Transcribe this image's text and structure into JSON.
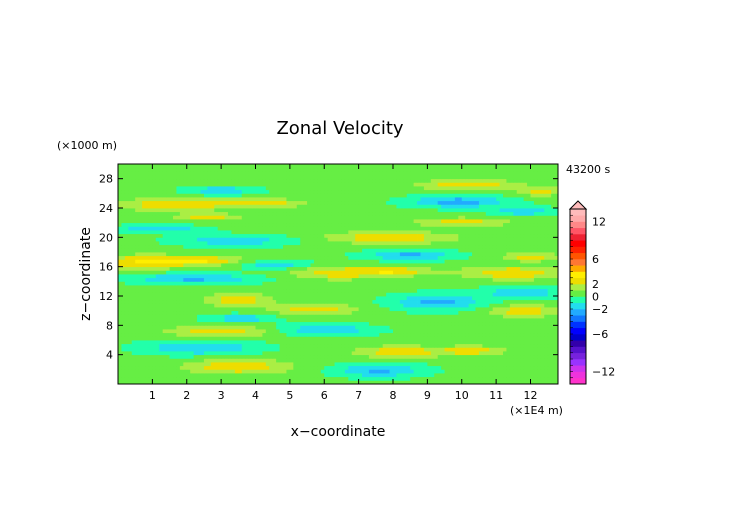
{
  "chart_data": {
    "type": "heatmap",
    "title": "Zonal Velocity",
    "xlabel": "x−coordinate",
    "ylabel": "z−coordinate",
    "x_unit": "(×1E4 m)",
    "y_unit": "(×1000 m)",
    "time_label": "43200 s",
    "xlim": [
      0,
      12.8
    ],
    "ylim": [
      0,
      30
    ],
    "x_ticks": [
      "1",
      "2",
      "3",
      "4",
      "5",
      "6",
      "7",
      "8",
      "9",
      "10",
      "11",
      "12"
    ],
    "y_ticks": [
      "4",
      "8",
      "12",
      "16",
      "20",
      "24",
      "28"
    ],
    "colorbar": {
      "min": -14,
      "max": 14,
      "labels": [
        "12",
        "6",
        "2",
        "0",
        "−2",
        "−6",
        "−12"
      ],
      "label_values": [
        12,
        6,
        2,
        0,
        -2,
        -6,
        -12
      ],
      "levels": [
        -14,
        -13,
        -12,
        -11,
        -10,
        -9,
        -8,
        -7,
        -6,
        -5,
        -4,
        -3,
        -2,
        -1,
        0,
        1,
        2,
        3,
        4,
        5,
        6,
        7,
        8,
        9,
        10,
        11,
        12,
        13,
        14
      ],
      "colors": [
        "#ff33cc",
        "#ee33dd",
        "#cc33ee",
        "#9933ff",
        "#7722dd",
        "#5511cc",
        "#3300aa",
        "#0000cc",
        "#0000ff",
        "#0033ff",
        "#1177ff",
        "#22aaff",
        "#22ddee",
        "#22ffaa",
        "#66ee44",
        "#aaee44",
        "#eedd00",
        "#ffee00",
        "#ffaa00",
        "#ff7733",
        "#ff5500",
        "#ff2200",
        "#ff0000",
        "#ee2233",
        "#ff5566",
        "#ff8888",
        "#ffaaaa",
        "#ffbbbb"
      ]
    },
    "background_value": 0.3,
    "features": [
      {
        "x": 3.5,
        "z": 2.4,
        "w": 1.5,
        "h": 1.0,
        "v": 2.6
      },
      {
        "x": 7.6,
        "z": 1.9,
        "w": 1.3,
        "h": 0.9,
        "v": -2.5
      },
      {
        "x": 2.4,
        "z": 5.0,
        "w": 1.6,
        "h": 1.0,
        "v": -2.4
      },
      {
        "x": 8.2,
        "z": 4.4,
        "w": 1.2,
        "h": 0.8,
        "v": 2.6
      },
      {
        "x": 10.3,
        "z": 4.6,
        "w": 0.9,
        "h": 0.6,
        "v": 2.4
      },
      {
        "x": 3.0,
        "z": 7.2,
        "w": 1.5,
        "h": 0.8,
        "v": 2.4
      },
      {
        "x": 6.0,
        "z": 7.4,
        "w": 1.4,
        "h": 0.8,
        "v": -2.3
      },
      {
        "x": 3.6,
        "z": 9.0,
        "w": 1.0,
        "h": 0.6,
        "v": -2.0
      },
      {
        "x": 3.5,
        "z": 11.5,
        "w": 0.9,
        "h": 0.9,
        "v": 2.5
      },
      {
        "x": 5.7,
        "z": 10.2,
        "w": 1.2,
        "h": 0.8,
        "v": 2.3
      },
      {
        "x": 9.3,
        "z": 11.2,
        "w": 1.3,
        "h": 1.1,
        "v": -2.7
      },
      {
        "x": 11.8,
        "z": 10.0,
        "w": 1.0,
        "h": 0.8,
        "v": 2.4
      },
      {
        "x": 11.8,
        "z": 12.5,
        "w": 1.2,
        "h": 0.8,
        "v": -2.1
      },
      {
        "x": 2.2,
        "z": 14.4,
        "w": 1.8,
        "h": 0.7,
        "v": -2.5
      },
      {
        "x": 0.8,
        "z": 16.7,
        "w": 1.5,
        "h": 0.9,
        "v": 2.8
      },
      {
        "x": 2.6,
        "z": 16.9,
        "w": 1.1,
        "h": 0.6,
        "v": 2.2
      },
      {
        "x": 6.4,
        "z": 15.2,
        "w": 1.4,
        "h": 0.9,
        "v": 2.3
      },
      {
        "x": 8.1,
        "z": 15.4,
        "w": 1.0,
        "h": 0.6,
        "v": 2.2
      },
      {
        "x": 11.5,
        "z": 15.2,
        "w": 1.5,
        "h": 0.9,
        "v": 2.5
      },
      {
        "x": 4.6,
        "z": 16.3,
        "w": 1.0,
        "h": 0.6,
        "v": -2.1
      },
      {
        "x": 8.5,
        "z": 17.6,
        "w": 1.3,
        "h": 0.7,
        "v": -2.5
      },
      {
        "x": 12.0,
        "z": 17.4,
        "w": 0.8,
        "h": 0.6,
        "v": 2.2
      },
      {
        "x": 3.4,
        "z": 19.6,
        "w": 1.7,
        "h": 0.8,
        "v": -2.0
      },
      {
        "x": 7.9,
        "z": 20.0,
        "w": 1.8,
        "h": 0.8,
        "v": 2.6
      },
      {
        "x": 1.2,
        "z": 21.2,
        "w": 1.2,
        "h": 0.5,
        "v": -2.2
      },
      {
        "x": 2.6,
        "z": 22.8,
        "w": 0.9,
        "h": 0.5,
        "v": 2.2
      },
      {
        "x": 10.0,
        "z": 22.1,
        "w": 1.3,
        "h": 0.6,
        "v": 2.3
      },
      {
        "x": 1.6,
        "z": 24.5,
        "w": 1.6,
        "h": 0.8,
        "v": 2.6
      },
      {
        "x": 4.2,
        "z": 24.7,
        "w": 1.2,
        "h": 0.6,
        "v": 2.3
      },
      {
        "x": 9.9,
        "z": 24.9,
        "w": 1.4,
        "h": 0.8,
        "v": -2.8
      },
      {
        "x": 11.8,
        "z": 23.6,
        "w": 0.9,
        "h": 0.6,
        "v": -2.1
      },
      {
        "x": 3.0,
        "z": 26.4,
        "w": 1.0,
        "h": 0.6,
        "v": -2.1
      },
      {
        "x": 10.2,
        "z": 27.2,
        "w": 1.4,
        "h": 0.7,
        "v": 2.5
      },
      {
        "x": 12.3,
        "z": 26.3,
        "w": 0.6,
        "h": 0.6,
        "v": 2.2
      }
    ]
  }
}
